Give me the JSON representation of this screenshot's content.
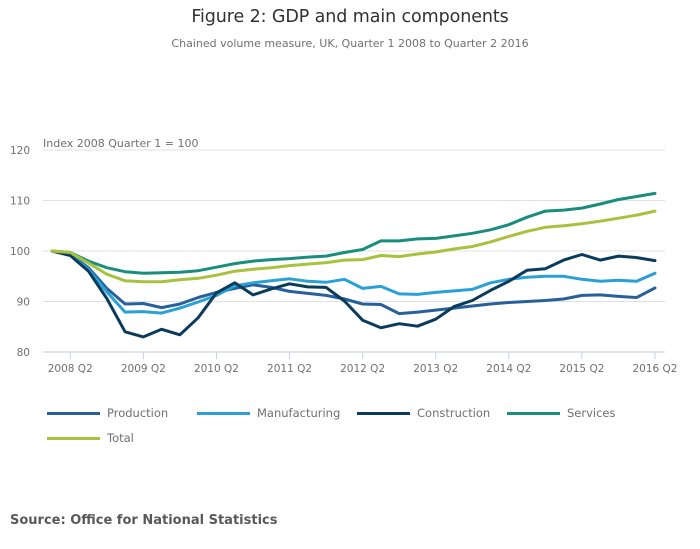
{
  "chart_data": {
    "type": "line",
    "title": "Figure 2: GDP and main components",
    "subtitle": "Chained volume measure, UK, Quarter 1 2008 to Quarter 2 2016",
    "ylabel": "Index 2008 Quarter 1 = 100",
    "xlabel": "",
    "ylim": [
      80,
      120
    ],
    "yticks": [
      80,
      90,
      100,
      110,
      120
    ],
    "grid": true,
    "legend_position": "bottom",
    "x": [
      "2008 Q1",
      "2008 Q2",
      "2008 Q3",
      "2008 Q4",
      "2009 Q1",
      "2009 Q2",
      "2009 Q3",
      "2009 Q4",
      "2010 Q1",
      "2010 Q2",
      "2010 Q3",
      "2010 Q4",
      "2011 Q1",
      "2011 Q2",
      "2011 Q3",
      "2011 Q4",
      "2012 Q1",
      "2012 Q2",
      "2012 Q3",
      "2012 Q4",
      "2013 Q1",
      "2013 Q2",
      "2013 Q3",
      "2013 Q4",
      "2014 Q1",
      "2014 Q2",
      "2014 Q3",
      "2014 Q4",
      "2015 Q1",
      "2015 Q2",
      "2015 Q3",
      "2015 Q4",
      "2016 Q1",
      "2016 Q2"
    ],
    "xticks": [
      "2008 Q2",
      "2009 Q2",
      "2010 Q2",
      "2011 Q2",
      "2012 Q2",
      "2013 Q2",
      "2014 Q2",
      "2015 Q2",
      "2016 Q2"
    ],
    "series": [
      {
        "name": "Production",
        "color": "#27609a",
        "values": [
          100,
          99.3,
          96.7,
          92.6,
          89.5,
          89.6,
          88.8,
          89.5,
          90.8,
          91.8,
          92.6,
          93.3,
          92.8,
          92.0,
          91.6,
          91.2,
          90.5,
          89.5,
          89.4,
          87.6,
          87.9,
          88.3,
          88.7,
          89.1,
          89.5,
          89.8,
          90.0,
          90.2,
          90.5,
          91.2,
          91.3,
          91.0,
          90.8,
          92.7
        ]
      },
      {
        "name": "Manufacturing",
        "color": "#2aa1d6",
        "values": [
          100,
          99.2,
          96.4,
          91.9,
          87.9,
          88.0,
          87.7,
          88.7,
          89.9,
          91.2,
          93.1,
          93.7,
          94.1,
          94.5,
          94.0,
          93.8,
          94.4,
          92.6,
          93.0,
          91.5,
          91.4,
          91.8,
          92.1,
          92.4,
          93.7,
          94.4,
          94.8,
          95.0,
          95.0,
          94.4,
          94.0,
          94.2,
          94.0,
          95.6
        ]
      },
      {
        "name": "Construction",
        "color": "#0b3b5c",
        "values": [
          100,
          99.1,
          96.0,
          90.6,
          84.0,
          83.0,
          84.5,
          83.4,
          86.8,
          91.7,
          93.7,
          91.3,
          92.5,
          93.5,
          92.9,
          92.8,
          90.1,
          86.3,
          84.8,
          85.6,
          85.1,
          86.5,
          89.0,
          90.2,
          92.2,
          94.0,
          96.2,
          96.5,
          98.2,
          99.3,
          98.2,
          99.0,
          98.7,
          98.1
        ]
      },
      {
        "name": "Services",
        "color": "#198e7c",
        "values": [
          100,
          99.7,
          98.0,
          96.7,
          95.9,
          95.6,
          95.7,
          95.8,
          96.1,
          96.8,
          97.5,
          98.0,
          98.3,
          98.5,
          98.8,
          99.0,
          99.7,
          100.3,
          102.0,
          102.0,
          102.4,
          102.5,
          103.0,
          103.5,
          104.2,
          105.2,
          106.7,
          107.9,
          108.1,
          108.5,
          109.3,
          110.2,
          110.8,
          111.4
        ]
      },
      {
        "name": "Total",
        "color": "#a8c23e",
        "values": [
          100,
          99.7,
          97.6,
          95.4,
          94.1,
          93.9,
          93.9,
          94.3,
          94.6,
          95.2,
          96.0,
          96.4,
          96.7,
          97.1,
          97.4,
          97.7,
          98.2,
          98.3,
          99.1,
          98.9,
          99.4,
          99.8,
          100.4,
          100.9,
          101.8,
          102.9,
          103.9,
          104.7,
          105.0,
          105.4,
          105.9,
          106.5,
          107.1,
          107.9
        ]
      }
    ]
  },
  "source": "Source: Office for National Statistics"
}
